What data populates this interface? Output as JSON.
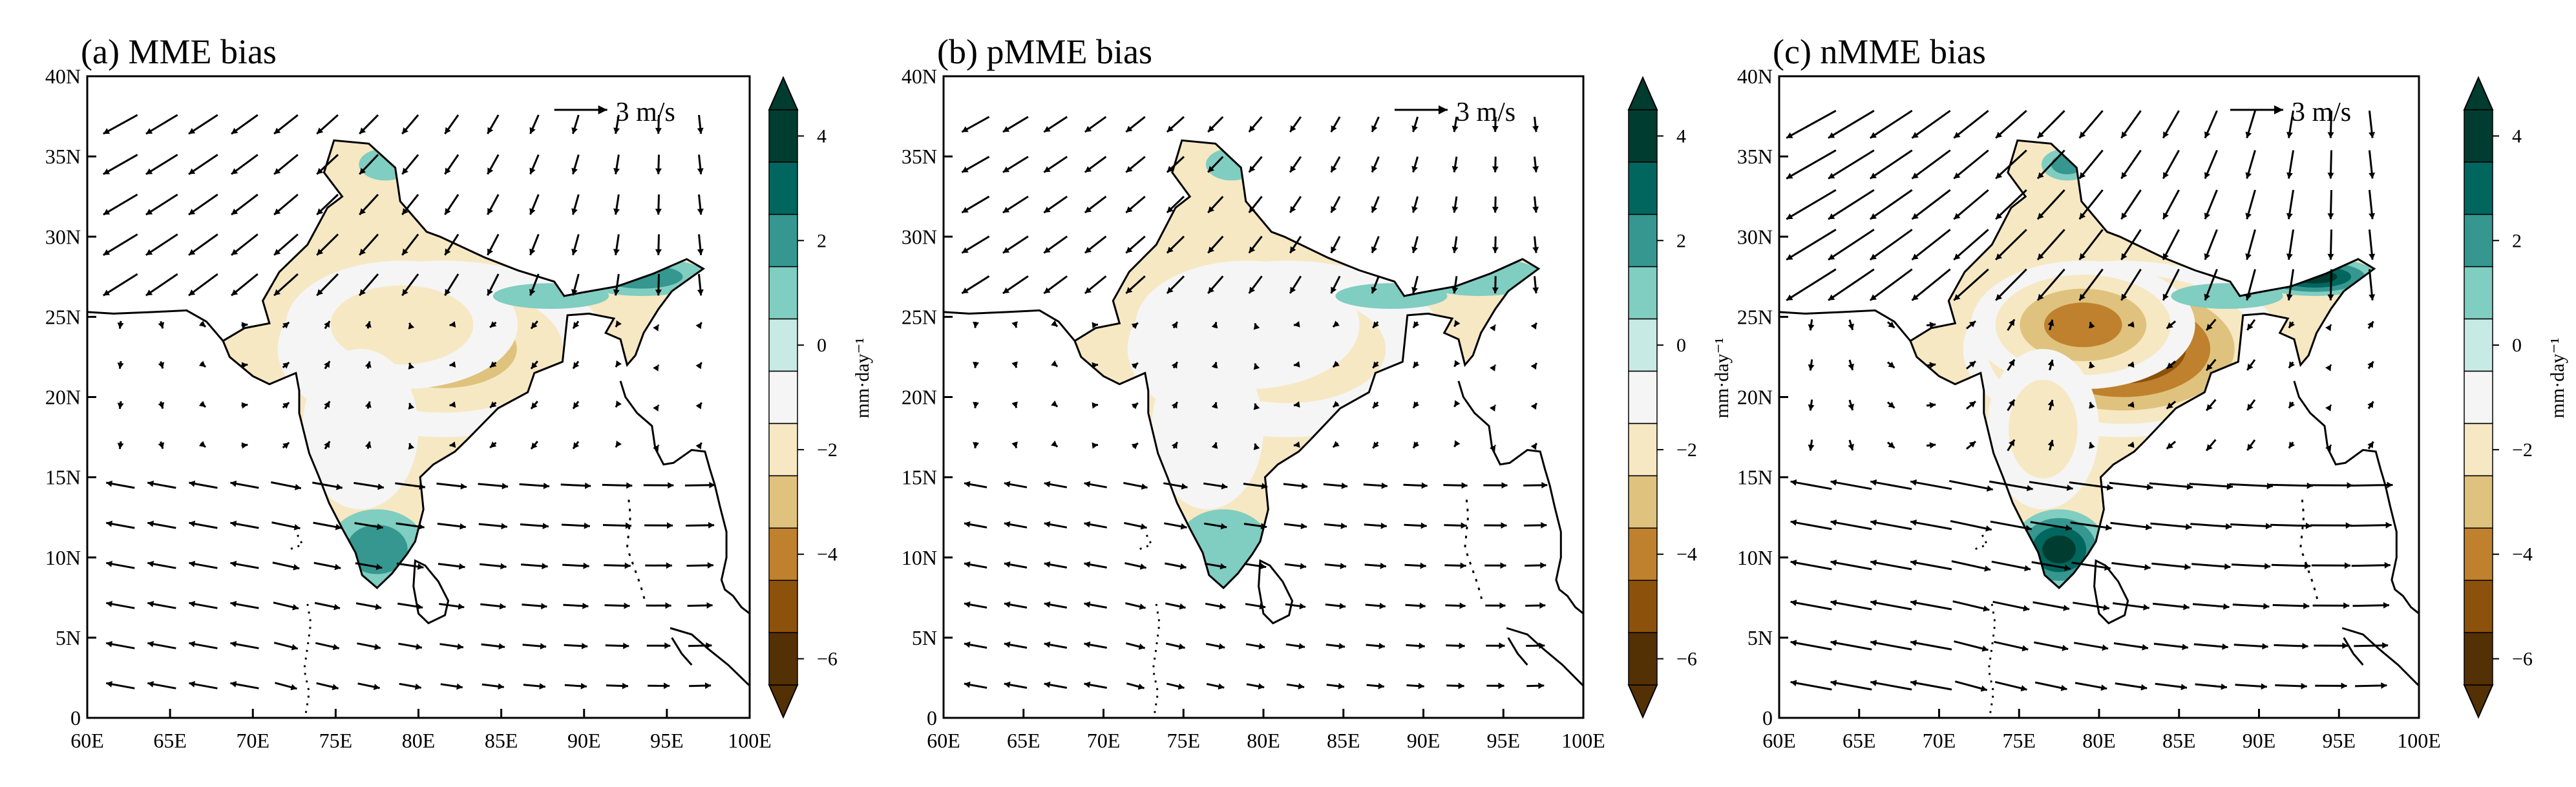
{
  "panels": [
    {
      "title": "(a) MME bias",
      "intensity": 1.0,
      "colorbar": {
        "ticks": [
          "4",
          "2",
          "0",
          "−2",
          "−4",
          "−6"
        ],
        "unit": "mm·day⁻¹"
      }
    },
    {
      "title": "(b) pMME bias",
      "intensity": 0.6,
      "colorbar": {
        "ticks": [
          "4",
          "2",
          "0",
          "−2",
          "−4",
          "−6"
        ],
        "unit": "mm·day⁻¹"
      }
    },
    {
      "title": "(c) nMME bias",
      "intensity": 1.9,
      "colorbar": {
        "ticks": [
          "4",
          "2",
          "0",
          "−2",
          "−4",
          "−6"
        ],
        "unit": "mm·day⁻¹"
      }
    }
  ],
  "axes": {
    "x_ticks": [
      "60E",
      "65E",
      "70E",
      "75E",
      "80E",
      "85E",
      "90E",
      "95E",
      "100E"
    ],
    "y_ticks": [
      "0",
      "5N",
      "10N",
      "15N",
      "20N",
      "25N",
      "30N",
      "35N",
      "40N"
    ],
    "lon_range": [
      60,
      100
    ],
    "lat_range": [
      0,
      40
    ]
  },
  "reference_vector_label": "3 m/s",
  "colors": {
    "levels": [
      "#543005",
      "#8c510a",
      "#bf812d",
      "#dfc27d",
      "#f6e8c3",
      "#f5f5f5",
      "#c7eae5",
      "#80cdc1",
      "#35978f",
      "#01665e",
      "#003c30"
    ],
    "land_outline": "#000000",
    "vector": "#000000"
  }
}
